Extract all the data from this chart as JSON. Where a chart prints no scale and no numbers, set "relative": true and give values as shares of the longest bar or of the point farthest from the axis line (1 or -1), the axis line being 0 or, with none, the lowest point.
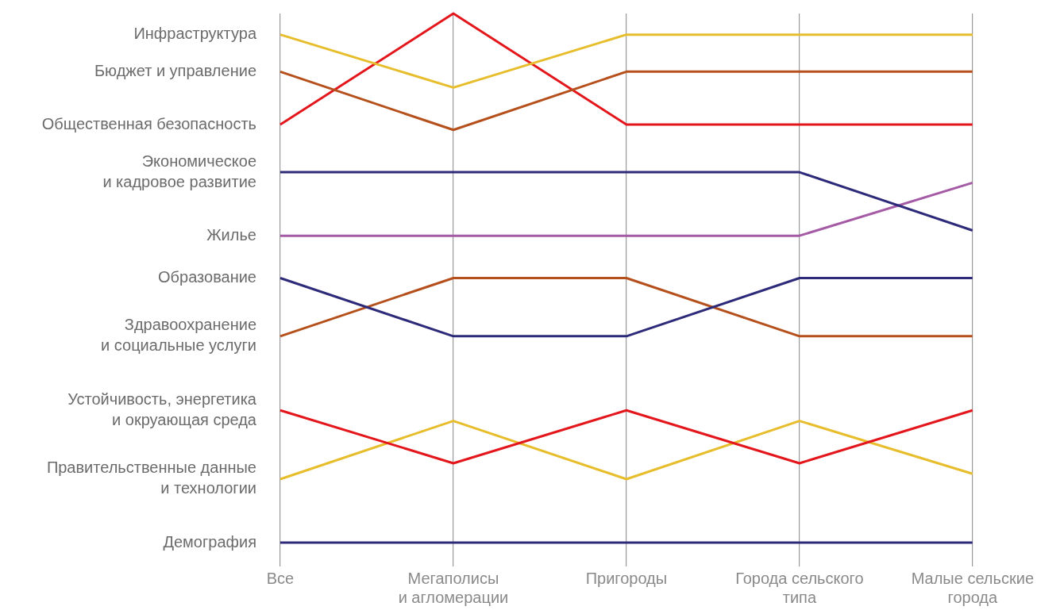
{
  "chart_data": {
    "type": "line",
    "relative": true,
    "grid": "x",
    "legend": false,
    "categories": [
      "Все",
      "Мегаполисы\nи агломерации",
      "Пригороды",
      "Города сельского\nтипа",
      "Малые сельские\nгорода"
    ],
    "series": [
      {
        "name": "Инфраструктура",
        "color": "#e8bd2c",
        "values": [
          0.96,
          0.86,
          0.96,
          0.96,
          0.96
        ]
      },
      {
        "name": "Бюджет и управление",
        "color": "#b5501c",
        "values": [
          0.89,
          0.78,
          0.89,
          0.89,
          0.89
        ]
      },
      {
        "name": "Общественная безопасность",
        "color": "#e3161b",
        "values": [
          0.79,
          1,
          0.79,
          0.79,
          0.79
        ]
      },
      {
        "name": "Экономическое\nи кадровое развитие",
        "color": "#2e2a7a",
        "values": [
          0.7,
          0.7,
          0.7,
          0.7,
          0.59
        ]
      },
      {
        "name": "Жилье",
        "color": "#a45aa5",
        "values": [
          0.58,
          0.58,
          0.58,
          0.58,
          0.68
        ]
      },
      {
        "name": "Образование",
        "color": "#2e2a7a",
        "values": [
          0.5,
          0.39,
          0.39,
          0.5,
          0.5
        ]
      },
      {
        "name": "Здравоохранение\nи социальные услуги",
        "color": "#b5501c",
        "values": [
          0.39,
          0.5,
          0.5,
          0.39,
          0.39
        ]
      },
      {
        "name": "Устойчивость, энергетика\nи окруающая среда",
        "color": "#e3161b",
        "values": [
          0.25,
          0.15,
          0.25,
          0.15,
          0.25
        ]
      },
      {
        "name": "Правительственные данные\nи технологии",
        "color": "#e8bd2c",
        "values": [
          0.12,
          0.23,
          0.12,
          0.23,
          0.13
        ]
      },
      {
        "name": "Демография",
        "color": "#2e2a7a",
        "values": [
          0,
          0,
          0,
          0,
          0
        ]
      }
    ]
  }
}
